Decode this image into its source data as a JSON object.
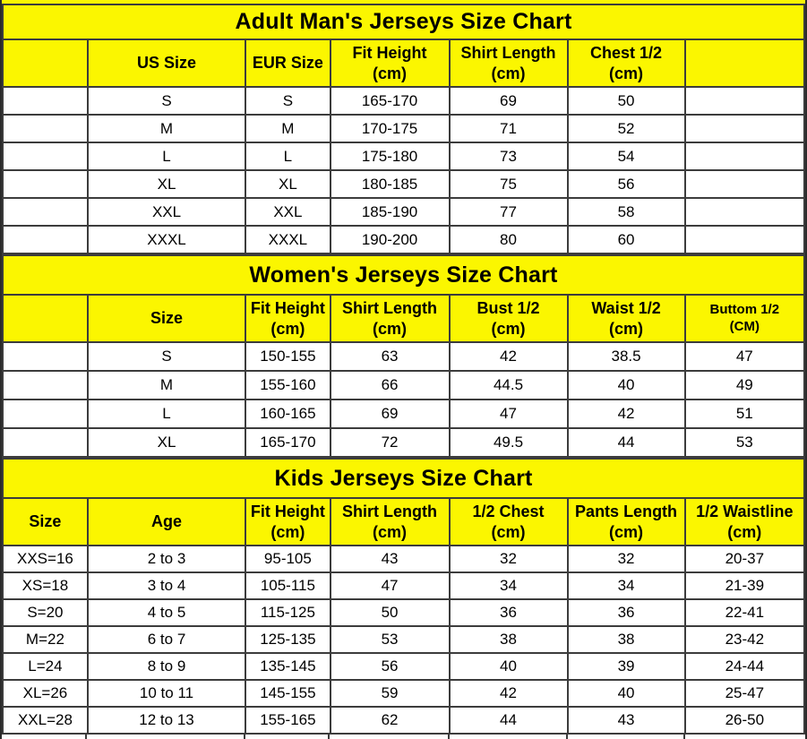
{
  "colors": {
    "section-bg": "#FBF600",
    "row-bg": "#FFFFFF",
    "border-col": "#3C3C3C",
    "text-col": "#000000"
  },
  "chart_data": [
    {
      "type": "table",
      "name": "adult-mens-size-chart",
      "title": "Adult Man's Jerseys Size Chart",
      "columns": [
        {
          "label": ""
        },
        {
          "label": "US Size"
        },
        {
          "label": "EUR Size"
        },
        {
          "label": "Fit Height",
          "unit": "(cm)"
        },
        {
          "label": "Shirt Length",
          "unit": "(cm)"
        },
        {
          "label": "Chest 1/2",
          "unit": "(cm)"
        },
        {
          "label": ""
        }
      ],
      "rows": [
        [
          "",
          "S",
          "S",
          "165-170",
          "69",
          "50",
          ""
        ],
        [
          "",
          "M",
          "M",
          "170-175",
          "71",
          "52",
          ""
        ],
        [
          "",
          "L",
          "L",
          "175-180",
          "73",
          "54",
          ""
        ],
        [
          "",
          "XL",
          "XL",
          "180-185",
          "75",
          "56",
          ""
        ],
        [
          "",
          "XXL",
          "XXL",
          "185-190",
          "77",
          "58",
          ""
        ],
        [
          "",
          "XXXL",
          "XXXL",
          "190-200",
          "80",
          "60",
          ""
        ]
      ]
    },
    {
      "type": "table",
      "name": "womens-size-chart",
      "title": "Women's Jerseys Size Chart",
      "columns": [
        {
          "label": ""
        },
        {
          "label": "Size"
        },
        {
          "label": "Fit Height",
          "unit": "(cm)"
        },
        {
          "label": "Shirt Length",
          "unit": "(cm)"
        },
        {
          "label": "Bust 1/2",
          "unit": "(cm)"
        },
        {
          "label": "Waist 1/2",
          "unit": "(cm)"
        },
        {
          "label": "Buttom 1/2",
          "unit": "(CM)",
          "small": true
        }
      ],
      "rows": [
        [
          "",
          "S",
          "150-155",
          "63",
          "42",
          "38.5",
          "47"
        ],
        [
          "",
          "M",
          "155-160",
          "66",
          "44.5",
          "40",
          "49"
        ],
        [
          "",
          "L",
          "160-165",
          "69",
          "47",
          "42",
          "51"
        ],
        [
          "",
          "XL",
          "165-170",
          "72",
          "49.5",
          "44",
          "53"
        ]
      ]
    },
    {
      "type": "table",
      "name": "kids-size-chart",
      "title": "Kids Jerseys Size Chart",
      "columns": [
        {
          "label": "Size"
        },
        {
          "label": "Age"
        },
        {
          "label": "Fit Height",
          "unit": "(cm)"
        },
        {
          "label": "Shirt Length",
          "unit": "(cm)"
        },
        {
          "label": "1/2 Chest",
          "unit": "(cm)"
        },
        {
          "label": "Pants Length",
          "unit": "(cm)"
        },
        {
          "label": "1/2 Waistline",
          "unit": "(cm)"
        }
      ],
      "rows": [
        [
          "XXS=16",
          "2 to 3",
          "95-105",
          "43",
          "32",
          "32",
          "20-37"
        ],
        [
          "XS=18",
          "3 to 4",
          "105-115",
          "47",
          "34",
          "34",
          "21-39"
        ],
        [
          "S=20",
          "4 to 5",
          "115-125",
          "50",
          "36",
          "36",
          "22-41"
        ],
        [
          "M=22",
          "6 to 7",
          "125-135",
          "53",
          "38",
          "38",
          "23-42"
        ],
        [
          "L=24",
          "8 to 9",
          "135-145",
          "56",
          "40",
          "39",
          "24-44"
        ],
        [
          "XL=26",
          "10 to 11",
          "145-155",
          "59",
          "42",
          "40",
          "25-47"
        ],
        [
          "XXL=28",
          "12 to 13",
          "155-165",
          "62",
          "44",
          "43",
          "26-50"
        ]
      ]
    }
  ]
}
